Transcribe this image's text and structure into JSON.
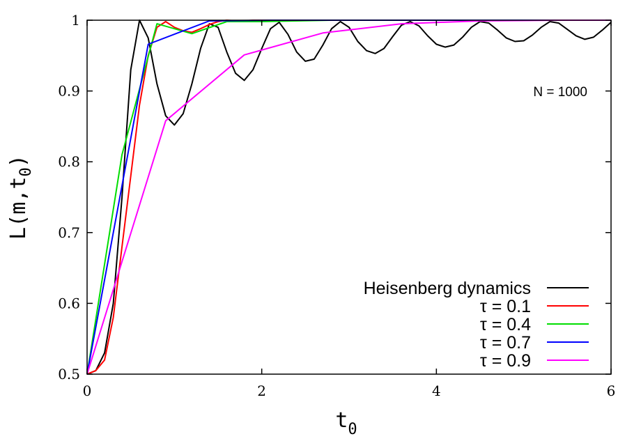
{
  "chart_data": {
    "type": "line",
    "title": "",
    "xlabel_main": "t",
    "xlabel_sub": "0",
    "ylabel_main": "L(m,t",
    "ylabel_sub": "0",
    "ylabel_close": ")",
    "xlim": [
      0,
      6
    ],
    "ylim": [
      0.5,
      1.0
    ],
    "xticks": [
      0,
      2,
      4,
      6
    ],
    "xtick_labels": [
      "0",
      "2",
      "4",
      "6"
    ],
    "yticks": [
      0.5,
      0.6,
      0.7,
      0.8,
      0.9,
      1.0
    ],
    "ytick_labels": [
      "0.5",
      "0.6",
      "0.7",
      "0.8",
      "0.9",
      "1"
    ],
    "grid": false,
    "legend_position": "bottom-right",
    "annotation": "N = 1000",
    "series": [
      {
        "name": "Heisenberg dynamics",
        "color": "#000000",
        "x": [
          0,
          0.1,
          0.2,
          0.3,
          0.4,
          0.5,
          0.6,
          0.7,
          0.8,
          0.9,
          1.0,
          1.1,
          1.2,
          1.3,
          1.4,
          1.5,
          1.6,
          1.7,
          1.8,
          1.9,
          2.0,
          2.1,
          2.2,
          2.3,
          2.4,
          2.5,
          2.6,
          2.7,
          2.8,
          2.9,
          3.0,
          3.1,
          3.2,
          3.3,
          3.4,
          3.5,
          3.6,
          3.7,
          3.8,
          3.9,
          4.0,
          4.1,
          4.2,
          4.3,
          4.4,
          4.5,
          4.6,
          4.7,
          4.8,
          4.9,
          5.0,
          5.1,
          5.2,
          5.3,
          5.4,
          5.5,
          5.6,
          5.7,
          5.8,
          5.9,
          6.0
        ],
        "y": [
          0.5,
          0.505,
          0.53,
          0.6,
          0.75,
          0.93,
          1.0,
          0.975,
          0.91,
          0.865,
          0.852,
          0.868,
          0.91,
          0.96,
          0.995,
          0.99,
          0.955,
          0.925,
          0.915,
          0.93,
          0.96,
          0.988,
          0.997,
          0.98,
          0.955,
          0.942,
          0.945,
          0.965,
          0.988,
          0.998,
          0.99,
          0.97,
          0.957,
          0.953,
          0.96,
          0.977,
          0.993,
          0.998,
          0.992,
          0.978,
          0.966,
          0.962,
          0.965,
          0.976,
          0.99,
          0.998,
          0.996,
          0.986,
          0.975,
          0.97,
          0.971,
          0.979,
          0.99,
          0.998,
          0.996,
          0.987,
          0.978,
          0.973,
          0.976,
          0.986,
          0.997
        ]
      },
      {
        "name": "τ = 0.1",
        "color": "#ff0000",
        "x": [
          0,
          0.1,
          0.2,
          0.3,
          0.4,
          0.5,
          0.6,
          0.7,
          0.8,
          0.9,
          1.0,
          1.1,
          1.2,
          1.3,
          1.4,
          1.5,
          1.6,
          1.7,
          1.8,
          1.9,
          2.0,
          3.0,
          4.0,
          5.0,
          6.0
        ],
        "y": [
          0.5,
          0.505,
          0.52,
          0.58,
          0.68,
          0.78,
          0.88,
          0.95,
          0.99,
          0.998,
          0.99,
          0.985,
          0.983,
          0.988,
          0.994,
          0.998,
          1.0,
          0.999,
          0.999,
          1.0,
          1.0,
          1.0,
          1.0,
          1.0,
          1.0
        ]
      },
      {
        "name": "τ = 0.4",
        "color": "#00dd00",
        "x": [
          0,
          0.4,
          0.8,
          1.2,
          1.6,
          2.0,
          2.4,
          2.8,
          3.2,
          3.6,
          4.0,
          4.4,
          4.8,
          5.2,
          5.6,
          6.0
        ],
        "y": [
          0.5,
          0.81,
          0.995,
          0.981,
          0.998,
          0.998,
          0.999,
          1.0,
          1.0,
          1.0,
          1.0,
          1.0,
          1.0,
          1.0,
          1.0,
          1.0
        ]
      },
      {
        "name": "τ = 0.7",
        "color": "#0000ff",
        "x": [
          0,
          0.7,
          1.4,
          2.1,
          2.8,
          3.5,
          4.2,
          4.9,
          5.6,
          6.0
        ],
        "y": [
          0.5,
          0.966,
          0.999,
          1.0,
          1.0,
          1.0,
          1.0,
          1.0,
          1.0,
          1.0
        ]
      },
      {
        "name": "τ = 0.9",
        "color": "#ff00ff",
        "x": [
          0,
          0.9,
          1.8,
          2.7,
          3.6,
          4.5,
          5.4,
          6.0
        ],
        "y": [
          0.5,
          0.858,
          0.951,
          0.982,
          0.995,
          0.999,
          1.0,
          1.0
        ]
      }
    ]
  }
}
